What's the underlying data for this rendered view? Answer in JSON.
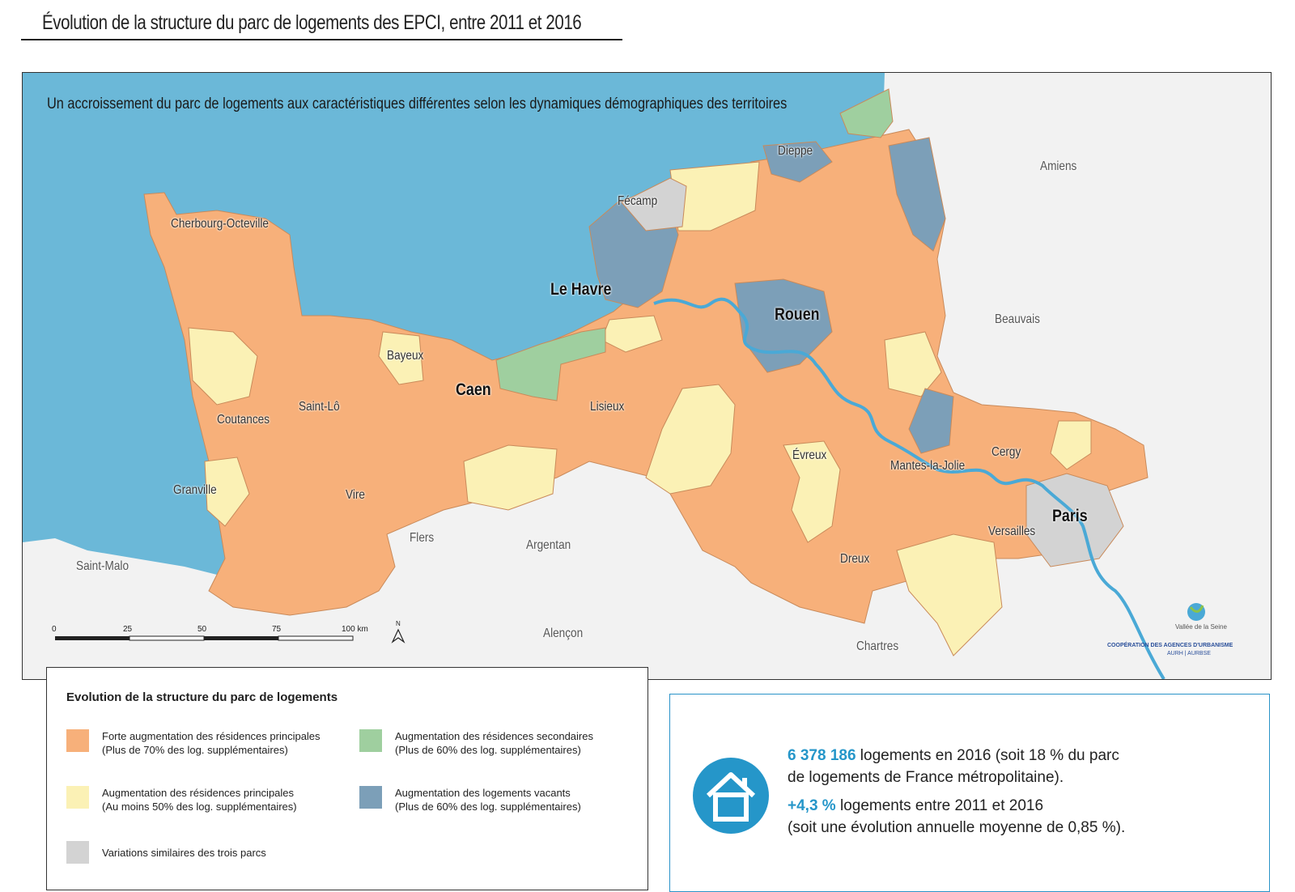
{
  "title": "Évolution de la structure du parc de logements des EPCI, entre 2011 et 2016",
  "subtitle": "Un accroissement du parc de logements aux caractéristiques différentes selon les dynamiques démographiques des territoires",
  "colors": {
    "sea": "#6bb8d8",
    "land_outside": "#f2f2f2",
    "forte_principales": "#f7b07a",
    "principales": "#fbf1b5",
    "secondaires": "#9fcf9f",
    "vacants": "#7c9fb8",
    "similaires": "#d3d3d3",
    "river": "#4aa9d6",
    "accent": "#2596c9"
  },
  "cities": {
    "cherbourg": "Cherbourg-Octeville",
    "fecamp": "Fécamp",
    "dieppe": "Dieppe",
    "amiens": "Amiens",
    "le_havre": "Le Havre",
    "rouen": "Rouen",
    "beauvais": "Beauvais",
    "bayeux": "Bayeux",
    "caen": "Caen",
    "coutances": "Coutances",
    "saint_lo": "Saint-Lô",
    "lisieux": "Lisieux",
    "evreux": "Évreux",
    "cergy": "Cergy",
    "mantes": "Mantes-la-Jolie",
    "granville": "Granville",
    "vire": "Vire",
    "paris": "Paris",
    "versailles": "Versailles",
    "flers": "Flers",
    "argentan": "Argentan",
    "dreux": "Dreux",
    "saint_malo": "Saint-Malo",
    "alencon": "Alençon",
    "chartres": "Chartres"
  },
  "scale": {
    "t0": "0",
    "t25": "25",
    "t50": "50",
    "t75": "75",
    "t100": "100 km",
    "north": "N"
  },
  "logo": {
    "name": "Vallée de la Seine",
    "line1": "COOPÉRATION DES AGENCES D'URBANISME",
    "line2": "AURH | AURBSE"
  },
  "legend": {
    "title": "Evolution de la structure du parc de logements",
    "items": [
      {
        "label": "Forte augmentation des résidences principales",
        "sub": "(Plus de 70% des log. supplémentaires)"
      },
      {
        "label": "Augmentation des résidences secondaires",
        "sub": "(Plus de 60% des log. supplémentaires)"
      },
      {
        "label": "Augmentation des résidences principales",
        "sub": "(Au moins 50% des log. supplémentaires)"
      },
      {
        "label": "Augmentation des logements vacants",
        "sub": "(Plus de 60% des log. supplémentaires)"
      },
      {
        "label": "Variations similaires des trois parcs",
        "sub": ""
      }
    ]
  },
  "info": {
    "total": "6 378 186",
    "line1_rest": " logements en 2016 (soit 18 % du parc",
    "line2": "de logements de France métropolitaine).",
    "growth": "+4,3 %",
    "line3_rest": " logements entre 2011 et 2016",
    "line4": "(soit une évolution annuelle moyenne de 0,85 %)."
  }
}
